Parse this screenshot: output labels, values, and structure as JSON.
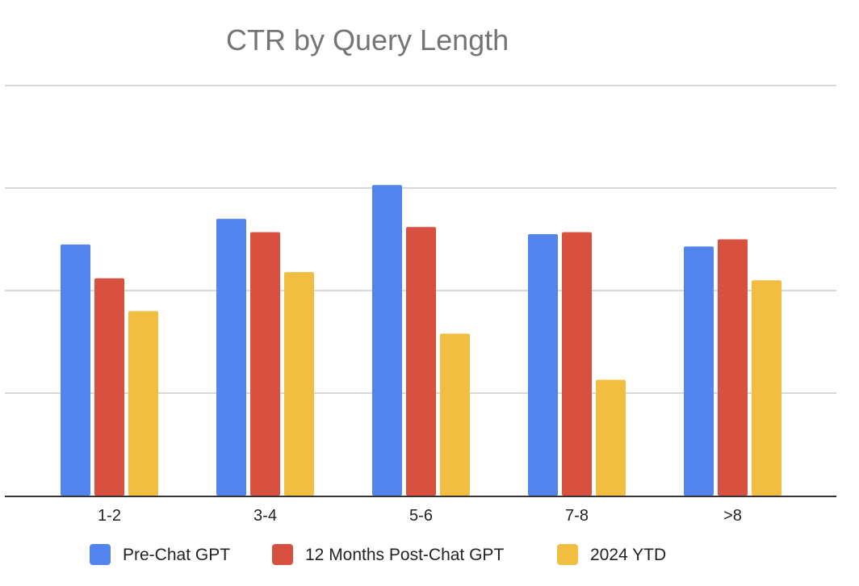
{
  "chart_data": {
    "type": "bar",
    "title": "CTR by Query Length",
    "xlabel": "",
    "ylabel": "",
    "categories": [
      "1-2",
      "3-4",
      "5-6",
      "7-8",
      ">8"
    ],
    "series": [
      {
        "name": "Pre-Chat GPT",
        "color": "#5383ec",
        "values": [
          2.45,
          2.7,
          3.03,
          2.55,
          2.43
        ]
      },
      {
        "name": "12 Months Post-Chat GPT",
        "color": "#d85140",
        "values": [
          2.12,
          2.57,
          2.62,
          2.57,
          2.5
        ]
      },
      {
        "name": "2024 YTD",
        "color": "#f1be42",
        "values": [
          1.8,
          2.18,
          1.58,
          1.13,
          2.1
        ]
      }
    ],
    "ylim": [
      0,
      4
    ],
    "gridlines": [
      1,
      2,
      3,
      4
    ],
    "y_tick_labels_shown": false,
    "grid": true,
    "legend_position": "bottom"
  }
}
